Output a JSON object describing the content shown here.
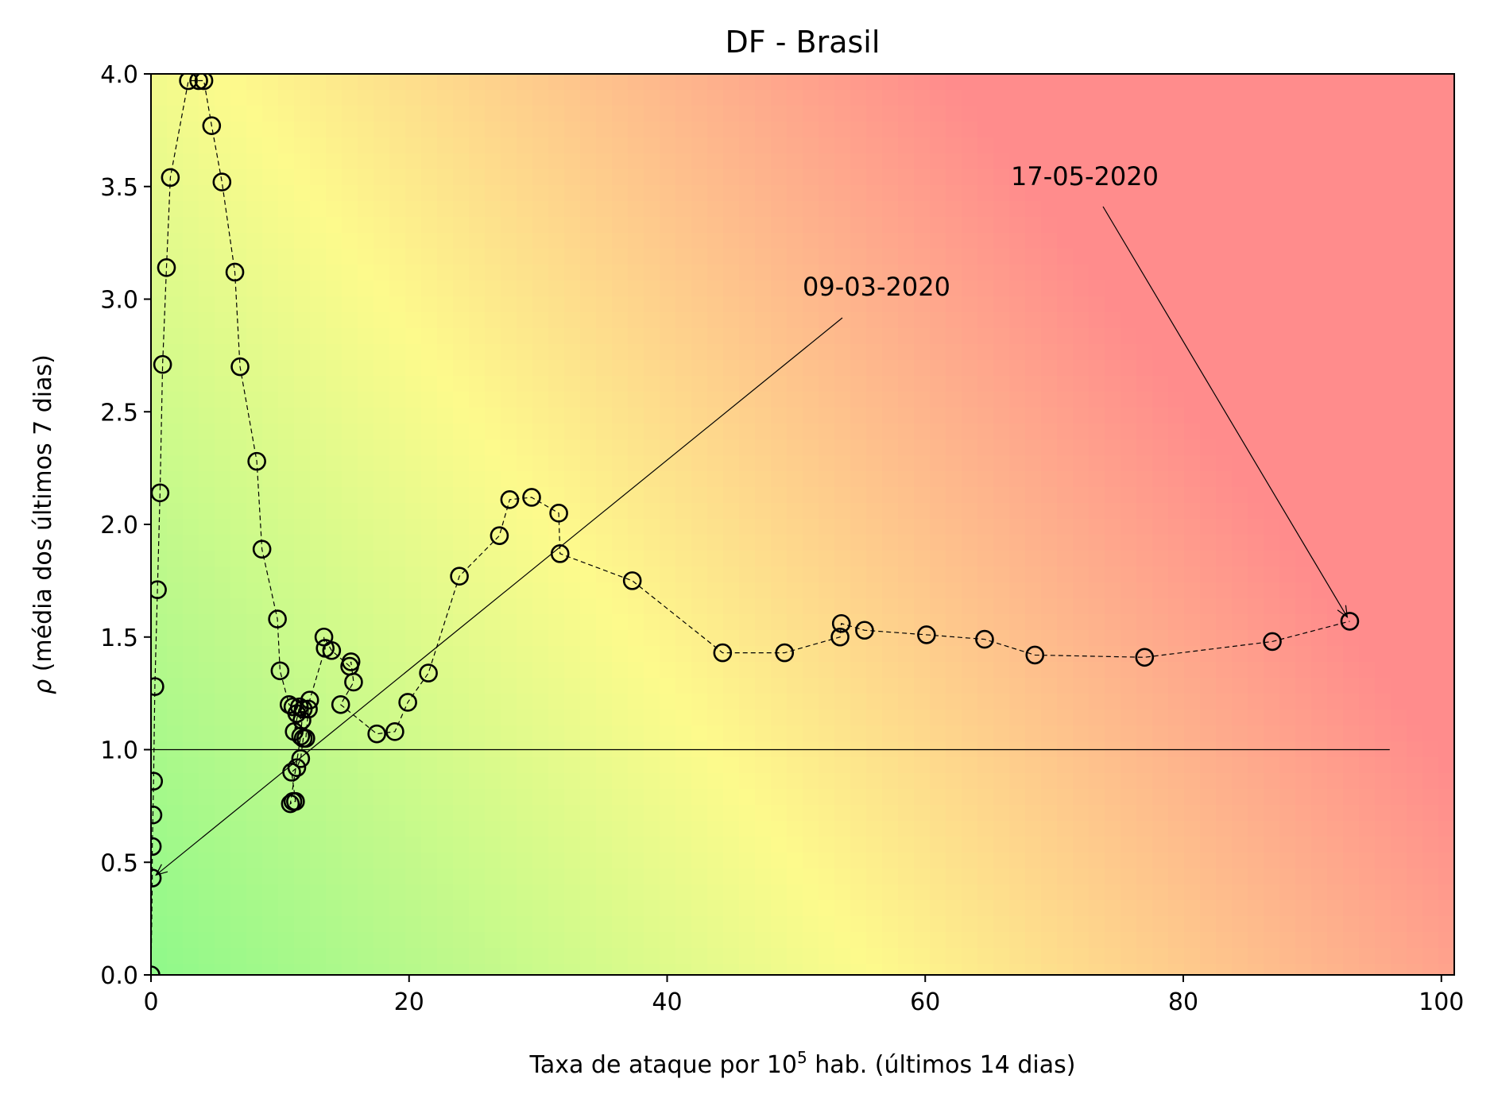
{
  "chart_data": {
    "type": "scatter",
    "title": "DF - Brasil",
    "xlabel": {
      "prefix": "Taxa de ataque por 10",
      "superscript": "5",
      "suffix": " hab. (últimos 14 dias)"
    },
    "ylabel": {
      "symbol": "ρ",
      "text": " (média dos últimos 7 dias)"
    },
    "xlim": [
      0,
      101
    ],
    "ylim": [
      0,
      4.0
    ],
    "xticks": [
      0,
      20,
      40,
      60,
      80,
      100
    ],
    "xtick_labels": [
      "0",
      "20",
      "40",
      "60",
      "80",
      "100"
    ],
    "yticks": [
      0.0,
      0.5,
      1.0,
      1.5,
      2.0,
      2.5,
      3.0,
      3.5,
      4.0
    ],
    "ytick_labels": [
      "0.0",
      "0.5",
      "1.0",
      "1.5",
      "2.0",
      "2.5",
      "3.0",
      "3.5",
      "4.0"
    ],
    "grid": false,
    "background": "risk gradient green (bottom-left) to yellow to red (top-right)",
    "colors": {
      "low": "#8ff98a",
      "mid": "#fdfa8c",
      "high": "#ff8c8c",
      "marker_edge": "#000000"
    },
    "reference_line": {
      "y": 1.0,
      "x_range": [
        0,
        96
      ]
    },
    "series": [
      {
        "x": [
          0.0,
          0.1,
          0.1,
          0.15,
          0.2,
          0.3,
          0.5,
          0.7,
          0.9,
          1.2,
          1.5,
          2.9,
          3.7,
          4.1,
          4.7,
          5.5,
          6.5,
          6.9,
          8.2,
          8.6,
          9.8,
          10.0,
          10.7,
          11.0,
          11.3,
          11.7,
          11.6,
          10.8,
          11.0,
          11.2,
          10.9,
          11.3,
          11.6,
          11.8,
          12.0,
          12.2,
          11.8,
          11.5,
          11.1,
          12.3,
          13.5,
          13.4,
          14.0,
          15.4,
          15.5,
          15.7,
          14.7,
          17.5,
          18.9,
          19.9,
          21.5,
          23.9,
          27.0,
          27.8,
          29.5,
          31.6,
          31.7,
          37.3,
          44.3,
          49.1,
          53.4,
          53.5,
          55.3,
          60.1,
          64.6,
          68.5,
          77.0,
          86.9,
          92.9
        ],
        "y": [
          0.0,
          0.43,
          0.57,
          0.71,
          0.86,
          1.28,
          1.71,
          2.14,
          2.71,
          3.14,
          3.54,
          3.97,
          3.97,
          3.97,
          3.77,
          3.52,
          3.12,
          2.7,
          2.28,
          1.89,
          1.58,
          1.35,
          1.2,
          1.19,
          1.16,
          1.13,
          1.06,
          0.76,
          0.77,
          0.77,
          0.9,
          0.92,
          0.96,
          1.05,
          1.05,
          1.18,
          1.18,
          1.19,
          1.08,
          1.22,
          1.45,
          1.5,
          1.44,
          1.37,
          1.39,
          1.3,
          1.2,
          1.07,
          1.08,
          1.21,
          1.34,
          1.77,
          1.95,
          2.11,
          2.12,
          2.05,
          1.87,
          1.75,
          1.43,
          1.43,
          1.5,
          1.56,
          1.53,
          1.51,
          1.49,
          1.42,
          1.41,
          1.48,
          1.57
        ]
      }
    ],
    "annotations": [
      {
        "text": "09-03-2020",
        "x": 0.1,
        "y": 0.43
      },
      {
        "text": "17-05-2020",
        "x": 92.9,
        "y": 1.57
      }
    ]
  }
}
